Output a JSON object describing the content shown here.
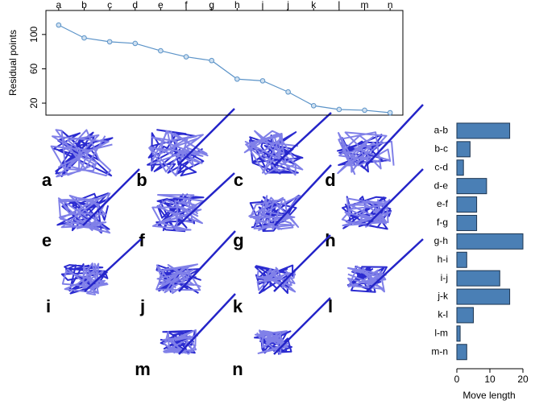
{
  "chart_data": [
    {
      "type": "line",
      "ylabel": "Residual points",
      "categories": [
        "a",
        "b",
        "c",
        "d",
        "e",
        "f",
        "g",
        "h",
        "i",
        "j",
        "k",
        "l",
        "m",
        "n"
      ],
      "values": [
        111,
        96,
        91.5,
        89.6,
        81,
        74,
        69.6,
        48,
        46,
        33,
        17,
        12.6,
        11.7,
        8.8
      ],
      "color": "#5b93c8",
      "ylim": [
        6,
        128
      ],
      "yticks": [
        20,
        60,
        100
      ]
    },
    {
      "type": "hbar",
      "xlabel": "Move length",
      "categories": [
        "a-b",
        "b-c",
        "c-d",
        "d-e",
        "e-f",
        "f-g",
        "g-h",
        "h-i",
        "i-j",
        "j-k",
        "k-l",
        "l-m",
        "m-n"
      ],
      "values": [
        16,
        4,
        2,
        9,
        6,
        6,
        20,
        3,
        13,
        16,
        5,
        1,
        3
      ],
      "color": "#4a7fb5",
      "xlim": [
        0,
        20.5
      ],
      "xticks": [
        0,
        10,
        20
      ]
    }
  ],
  "structure_panels": [
    "a",
    "b",
    "c",
    "d",
    "e",
    "f",
    "g",
    "h",
    "i",
    "j",
    "k",
    "l",
    "m",
    "n"
  ]
}
